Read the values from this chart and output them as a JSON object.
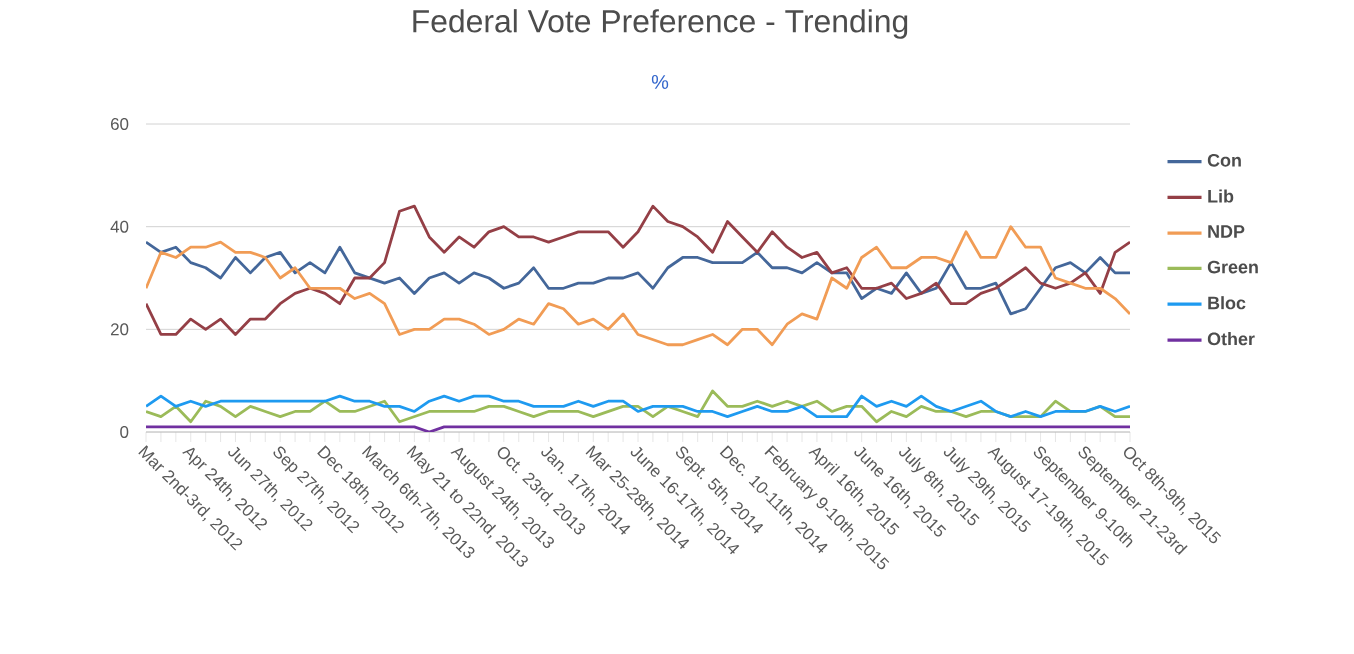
{
  "chart_data": {
    "type": "line",
    "title": "Federal Vote Preference - Trending",
    "subtitle": "%",
    "categories": [
      "Mar 2nd-3rd, 2012",
      null,
      null,
      "Apr 24th, 2012",
      null,
      null,
      "Jun 27th, 2012",
      null,
      null,
      "Sep 27th, 2012",
      null,
      null,
      "Dec 18th, 2012",
      null,
      null,
      "March 6th-7th, 2013",
      null,
      null,
      "May 21 to 22nd, 2013",
      null,
      null,
      "August 24th, 2013",
      null,
      null,
      "Oct. 23rd, 2013",
      null,
      null,
      "Jan. 17th, 2014",
      null,
      null,
      "Mar 25-28th, 2014",
      null,
      null,
      "June 16-17th, 2014",
      null,
      null,
      "Sept. 5th, 2014",
      null,
      null,
      "Dec. 10-11th, 2014",
      null,
      null,
      "February 9-10th, 2015",
      null,
      null,
      "April 16th, 2015",
      null,
      null,
      "June 16th, 2015",
      null,
      null,
      "July 8th, 2015",
      null,
      null,
      "July 29th, 2015",
      null,
      null,
      "August 17-19th, 2015",
      null,
      null,
      "September 9-10th",
      null,
      null,
      "September 21-23rd",
      null,
      null,
      "Oct 8th-9th, 2015"
    ],
    "series": [
      {
        "name": "Con",
        "color": "#44679a",
        "values": [
          37,
          35,
          36,
          33,
          32,
          30,
          34,
          31,
          34,
          35,
          31,
          33,
          31,
          36,
          31,
          30,
          29,
          30,
          27,
          30,
          31,
          29,
          31,
          30,
          28,
          29,
          32,
          28,
          28,
          29,
          29,
          30,
          30,
          31,
          28,
          32,
          34,
          34,
          33,
          33,
          33,
          35,
          32,
          32,
          31,
          33,
          31,
          31,
          26,
          28,
          27,
          31,
          27,
          28,
          33,
          28,
          28,
          29,
          23,
          24,
          28,
          32,
          33,
          31,
          34,
          31,
          31
        ]
      },
      {
        "name": "Lib",
        "color": "#943f46",
        "values": [
          25,
          19,
          19,
          22,
          20,
          22,
          19,
          22,
          22,
          25,
          27,
          28,
          27,
          25,
          30,
          30,
          33,
          43,
          44,
          38,
          35,
          38,
          36,
          39,
          40,
          38,
          38,
          37,
          38,
          39,
          39,
          39,
          36,
          39,
          44,
          41,
          40,
          38,
          35,
          41,
          38,
          35,
          39,
          36,
          34,
          35,
          31,
          32,
          28,
          28,
          29,
          26,
          27,
          29,
          25,
          25,
          27,
          28,
          30,
          32,
          29,
          28,
          29,
          31,
          27,
          35,
          37
        ]
      },
      {
        "name": "NDP",
        "color": "#f19c55",
        "values": [
          28,
          35,
          34,
          36,
          36,
          37,
          35,
          35,
          34,
          30,
          32,
          28,
          28,
          28,
          26,
          27,
          25,
          19,
          20,
          20,
          22,
          22,
          21,
          19,
          20,
          22,
          21,
          25,
          24,
          21,
          22,
          20,
          23,
          19,
          18,
          17,
          17,
          18,
          19,
          17,
          20,
          20,
          17,
          21,
          23,
          22,
          30,
          28,
          34,
          36,
          32,
          32,
          34,
          34,
          33,
          39,
          34,
          34,
          40,
          36,
          36,
          30,
          29,
          28,
          28,
          26,
          23
        ]
      },
      {
        "name": "Green",
        "color": "#9bbb59",
        "values": [
          4,
          3,
          5,
          2,
          6,
          5,
          3,
          5,
          4,
          3,
          4,
          4,
          6,
          4,
          4,
          5,
          6,
          2,
          3,
          4,
          4,
          4,
          4,
          5,
          5,
          4,
          3,
          4,
          4,
          4,
          3,
          4,
          5,
          5,
          3,
          5,
          4,
          3,
          8,
          5,
          5,
          6,
          5,
          6,
          5,
          6,
          4,
          5,
          5,
          2,
          4,
          3,
          5,
          4,
          4,
          3,
          4,
          4,
          3,
          3,
          3,
          6,
          4,
          4,
          5,
          3,
          3
        ]
      },
      {
        "name": "Bloc",
        "color": "#1e9af0",
        "values": [
          5,
          7,
          5,
          6,
          5,
          6,
          6,
          6,
          6,
          6,
          6,
          6,
          6,
          7,
          6,
          6,
          5,
          5,
          4,
          6,
          7,
          6,
          7,
          7,
          6,
          6,
          5,
          5,
          5,
          6,
          5,
          6,
          6,
          4,
          5,
          5,
          5,
          4,
          4,
          3,
          4,
          5,
          4,
          4,
          5,
          3,
          3,
          3,
          7,
          5,
          6,
          5,
          7,
          5,
          4,
          5,
          6,
          4,
          3,
          4,
          3,
          4,
          4,
          4,
          5,
          4,
          5
        ]
      },
      {
        "name": "Other",
        "color": "#7030a0",
        "values": [
          1,
          1,
          1,
          1,
          1,
          1,
          1,
          1,
          1,
          1,
          1,
          1,
          1,
          1,
          1,
          1,
          1,
          1,
          1,
          0,
          1,
          1,
          1,
          1,
          1,
          1,
          1,
          1,
          1,
          1,
          1,
          1,
          1,
          1,
          1,
          1,
          1,
          1,
          1,
          1,
          1,
          1,
          1,
          1,
          1,
          1,
          1,
          1,
          1,
          1,
          1,
          1,
          1,
          1,
          1,
          1,
          1,
          1,
          1,
          1,
          1,
          1,
          1,
          1,
          1,
          1,
          1
        ]
      }
    ],
    "ylim": [
      0,
      60
    ],
    "yticks": [
      0,
      20,
      40,
      60
    ],
    "grid": "y",
    "legend": "right",
    "marker": "none",
    "line_style": "solid"
  }
}
